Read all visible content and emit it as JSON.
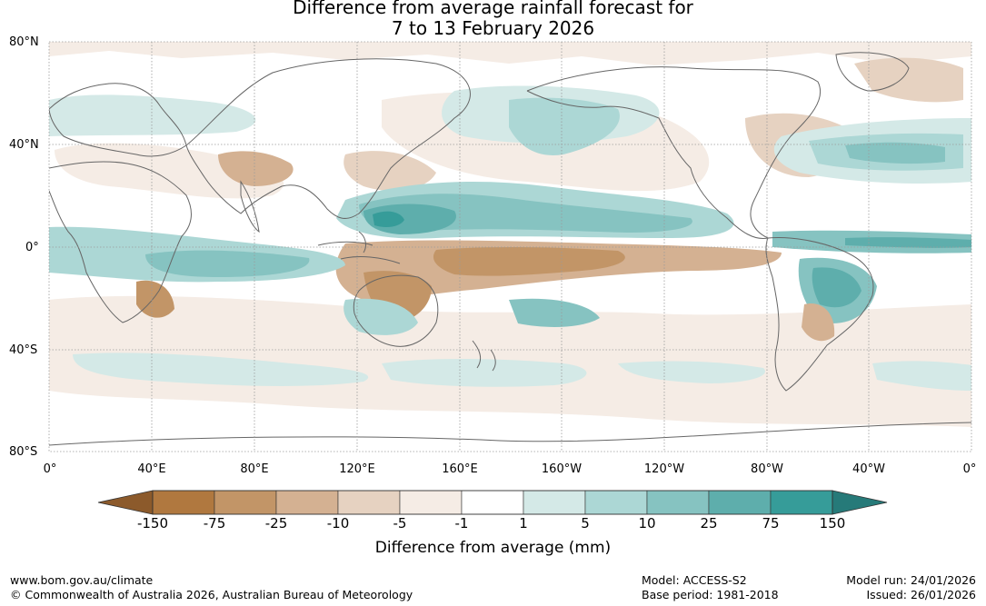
{
  "title": {
    "line1": "Difference from average rainfall forecast for",
    "line2": "7 to 13 February 2026"
  },
  "map": {
    "lat_labels": [
      "80°N",
      "40°N",
      "0°",
      "40°S",
      "80°S"
    ],
    "lon_labels": [
      "0°",
      "40°E",
      "80°E",
      "120°E",
      "160°E",
      "160°W",
      "120°W",
      "80°W",
      "40°W",
      "0°"
    ]
  },
  "legend": {
    "title": "Difference from average (mm)",
    "tick_labels": [
      "-150",
      "-75",
      "-25",
      "-10",
      "-5",
      "-1",
      "1",
      "5",
      "10",
      "25",
      "75",
      "150"
    ],
    "colors": {
      "below_min": "#8c5a2b",
      "bins": [
        "#b0783f",
        "#c29567",
        "#d4b192",
        "#e6d2c1",
        "#f5ece5",
        "#ffffff",
        "#d4e9e7",
        "#acd7d5",
        "#86c3c1",
        "#5eaeac",
        "#369c99"
      ],
      "above_max": "#267a79",
      "coast": "#666666",
      "grid": "#9a9a9a"
    }
  },
  "footer": {
    "website": "www.bom.gov.au/climate",
    "copyright": "© Commonwealth of Australia 2026, Australian Bureau of Meteorology",
    "model": "Model: ACCESS-S2",
    "base_period": "Base period: 1981-2018",
    "model_run": "Model run: 24/01/2026",
    "issued": "Issued: 26/01/2026"
  }
}
